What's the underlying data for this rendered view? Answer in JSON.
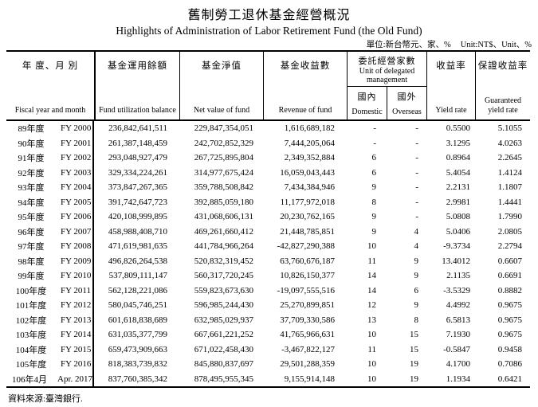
{
  "title_zh": "舊制勞工退休基金經營概況",
  "title_en": "Highlights of Administration of Labor Retirement Fund (the Old Fund)",
  "unit_note_zh": "單位:新台幣元、家、%",
  "unit_note_en": "Unit:NT$、Unit、%",
  "table": {
    "headers": {
      "year": {
        "zh": "年 度、月 別",
        "en": "Fiscal year and month"
      },
      "balance": {
        "zh": "基金運用餘額",
        "en": "Fund utilization balance"
      },
      "net": {
        "zh": "基金淨值",
        "en": "Net value of fund"
      },
      "revenue": {
        "zh": "基金收益數",
        "en": "Revenue of fund"
      },
      "delegated": {
        "zh": "委託經營家數",
        "en": "Unit of delegated management"
      },
      "domestic": {
        "zh": "國內",
        "en": "Domestic"
      },
      "overseas": {
        "zh": "國外",
        "en": "Overseas"
      },
      "yield": {
        "zh": "收益率",
        "en": "Yield rate"
      },
      "guaranteed": {
        "zh": "保證收益率",
        "en": "Guaranteed yield rate"
      }
    },
    "rows": [
      {
        "y_zh": "89年度",
        "y_en": "FY 2000",
        "balance": "236,842,641,511",
        "net": "229,847,354,051",
        "revenue": "1,616,689,182",
        "dom": "-",
        "ovs": "-",
        "yield": "0.5500",
        "guar": "5.1055"
      },
      {
        "y_zh": "90年度",
        "y_en": "FY 2001",
        "balance": "261,387,148,459",
        "net": "242,702,852,329",
        "revenue": "7,444,205,064",
        "dom": "-",
        "ovs": "-",
        "yield": "3.1295",
        "guar": "4.0263"
      },
      {
        "y_zh": "91年度",
        "y_en": "FY 2002",
        "balance": "293,048,927,479",
        "net": "267,725,895,804",
        "revenue": "2,349,352,884",
        "dom": "6",
        "ovs": "-",
        "yield": "0.8964",
        "guar": "2.2645"
      },
      {
        "y_zh": "92年度",
        "y_en": "FY 2003",
        "balance": "329,334,224,261",
        "net": "314,977,675,424",
        "revenue": "16,059,043,443",
        "dom": "6",
        "ovs": "-",
        "yield": "5.4054",
        "guar": "1.4124"
      },
      {
        "y_zh": "93年度",
        "y_en": "FY 2004",
        "balance": "373,847,267,365",
        "net": "359,788,508,842",
        "revenue": "7,434,384,946",
        "dom": "9",
        "ovs": "-",
        "yield": "2.2131",
        "guar": "1.1807"
      },
      {
        "y_zh": "94年度",
        "y_en": "FY 2005",
        "balance": "391,742,647,723",
        "net": "392,885,059,180",
        "revenue": "11,177,972,018",
        "dom": "8",
        "ovs": "-",
        "yield": "2.9981",
        "guar": "1.4441"
      },
      {
        "y_zh": "95年度",
        "y_en": "FY 2006",
        "balance": "420,108,999,895",
        "net": "431,068,606,131",
        "revenue": "20,230,762,165",
        "dom": "9",
        "ovs": "-",
        "yield": "5.0808",
        "guar": "1.7990"
      },
      {
        "y_zh": "96年度",
        "y_en": "FY 2007",
        "balance": "458,988,408,710",
        "net": "469,261,660,412",
        "revenue": "21,448,785,851",
        "dom": "9",
        "ovs": "4",
        "yield": "5.0406",
        "guar": "2.0805"
      },
      {
        "y_zh": "97年度",
        "y_en": "FY 2008",
        "balance": "471,619,981,635",
        "net": "441,784,966,264",
        "revenue": "-42,827,290,388",
        "dom": "10",
        "ovs": "4",
        "yield": "-9.3734",
        "guar": "2.2794"
      },
      {
        "y_zh": "98年度",
        "y_en": "FY 2009",
        "balance": "496,826,264,538",
        "net": "520,832,319,452",
        "revenue": "63,760,676,187",
        "dom": "11",
        "ovs": "9",
        "yield": "13.4012",
        "guar": "0.6607"
      },
      {
        "y_zh": "99年度",
        "y_en": "FY 2010",
        "balance": "537,809,111,147",
        "net": "560,317,720,245",
        "revenue": "10,826,150,377",
        "dom": "14",
        "ovs": "9",
        "yield": "2.1135",
        "guar": "0.6691"
      },
      {
        "y_zh": "100年度",
        "y_en": "FY 2011",
        "balance": "562,128,221,086",
        "net": "559,823,673,630",
        "revenue": "-19,097,555,516",
        "dom": "14",
        "ovs": "6",
        "yield": "-3.5329",
        "guar": "0.8882"
      },
      {
        "y_zh": "101年度",
        "y_en": "FY 2012",
        "balance": "580,045,746,251",
        "net": "596,985,244,430",
        "revenue": "25,270,899,851",
        "dom": "12",
        "ovs": "9",
        "yield": "4.4992",
        "guar": "0.9675"
      },
      {
        "y_zh": "102年度",
        "y_en": "FY 2013",
        "balance": "601,618,838,689",
        "net": "632,985,029,937",
        "revenue": "37,709,330,586",
        "dom": "13",
        "ovs": "8",
        "yield": "6.5813",
        "guar": "0.9675"
      },
      {
        "y_zh": "103年度",
        "y_en": "FY 2014",
        "balance": "631,035,377,799",
        "net": "667,661,221,252",
        "revenue": "41,765,966,631",
        "dom": "10",
        "ovs": "15",
        "yield": "7.1930",
        "guar": "0.9675"
      },
      {
        "y_zh": "104年度",
        "y_en": "FY 2015",
        "balance": "659,473,909,663",
        "net": "671,022,458,430",
        "revenue": "-3,467,822,127",
        "dom": "11",
        "ovs": "15",
        "yield": "-0.5847",
        "guar": "0.9458"
      },
      {
        "y_zh": "105年度",
        "y_en": "FY 2016",
        "balance": "818,383,739,832",
        "net": "845,880,837,697",
        "revenue": "29,501,288,359",
        "dom": "10",
        "ovs": "19",
        "yield": "4.1700",
        "guar": "0.7086"
      },
      {
        "y_zh": "106年4月",
        "y_en": "Apr. 2017",
        "balance": "837,760,385,342",
        "net": "878,495,955,345",
        "revenue": "9,155,914,148",
        "dom": "10",
        "ovs": "19",
        "yield": "1.1934",
        "guar": "0.6421"
      }
    ]
  },
  "source_note": "資料來源:臺灣銀行."
}
